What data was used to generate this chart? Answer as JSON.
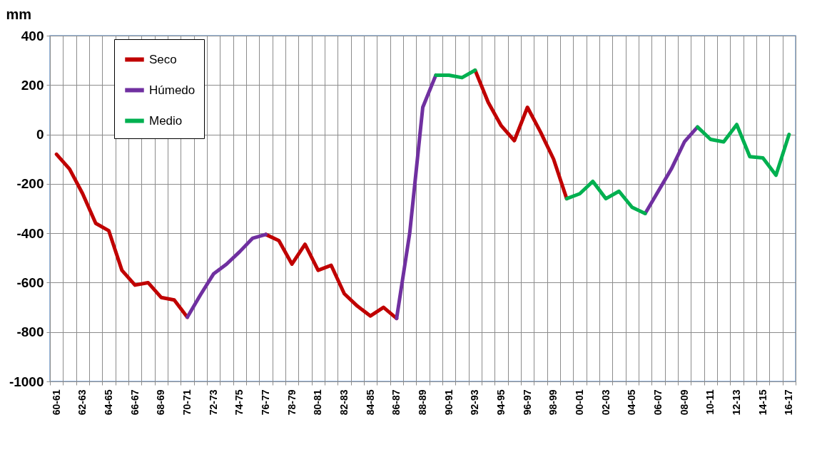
{
  "chart_data": {
    "type": "line",
    "ylabel": "mm",
    "categories": [
      "60-61",
      null,
      "62-63",
      null,
      "64-65",
      null,
      "66-67",
      null,
      "68-69",
      null,
      "70-71",
      null,
      "72-73",
      null,
      "74-75",
      null,
      "76-77",
      null,
      "78-79",
      null,
      "80-81",
      null,
      "82-83",
      null,
      "84-85",
      null,
      "86-87",
      null,
      "88-89",
      null,
      "90-91",
      null,
      "92-93",
      null,
      "94-95",
      null,
      "96-97",
      null,
      "98-99",
      null,
      "00-01",
      null,
      "02-03",
      null,
      "04-05",
      null,
      "06-07",
      null,
      "08-09",
      null,
      "10-11",
      null,
      "12-13",
      null,
      "14-15",
      null,
      "16-17"
    ],
    "series": [
      {
        "name": "Seco",
        "color": "#c00000",
        "values": [
          -80,
          -140,
          -240,
          -360,
          -390,
          -550,
          -610,
          -600,
          -660,
          -670,
          -740,
          null,
          null,
          null,
          null,
          null,
          -405,
          -430,
          -525,
          -445,
          -550,
          -530,
          -645,
          -695,
          -735,
          -700,
          -745,
          null,
          null,
          null,
          null,
          null,
          260,
          130,
          35,
          -25,
          110,
          10,
          -100,
          -260,
          null,
          null,
          null,
          null,
          null,
          null,
          null,
          null,
          null,
          null,
          null,
          null,
          null,
          null,
          null,
          null,
          null
        ]
      },
      {
        "name": "Húmedo",
        "color": "#7030a0",
        "values": [
          null,
          null,
          null,
          null,
          null,
          null,
          null,
          null,
          null,
          null,
          -740,
          -650,
          -565,
          -525,
          -475,
          -420,
          -405,
          null,
          null,
          null,
          null,
          null,
          null,
          null,
          null,
          null,
          -745,
          -400,
          110,
          240,
          null,
          null,
          null,
          null,
          null,
          null,
          null,
          null,
          null,
          null,
          null,
          null,
          null,
          null,
          null,
          -320,
          -230,
          -140,
          -30,
          30,
          null,
          null,
          null,
          null,
          null,
          null,
          null
        ]
      },
      {
        "name": "Medio",
        "color": "#00b050",
        "values": [
          null,
          null,
          null,
          null,
          null,
          null,
          null,
          null,
          null,
          null,
          null,
          null,
          null,
          null,
          null,
          null,
          null,
          null,
          null,
          null,
          null,
          null,
          null,
          null,
          null,
          null,
          null,
          null,
          null,
          240,
          240,
          230,
          260,
          null,
          null,
          null,
          null,
          null,
          null,
          -260,
          -240,
          -190,
          -260,
          -230,
          -295,
          -320,
          null,
          null,
          null,
          30,
          -20,
          -30,
          40,
          -90,
          -95,
          -165,
          0
        ]
      }
    ],
    "ylim": [
      -1000,
      400
    ],
    "yticks": [
      -1000,
      -800,
      -600,
      -400,
      -200,
      0,
      200,
      400
    ],
    "grid": true,
    "legend": "top left",
    "line_style": "solid"
  }
}
